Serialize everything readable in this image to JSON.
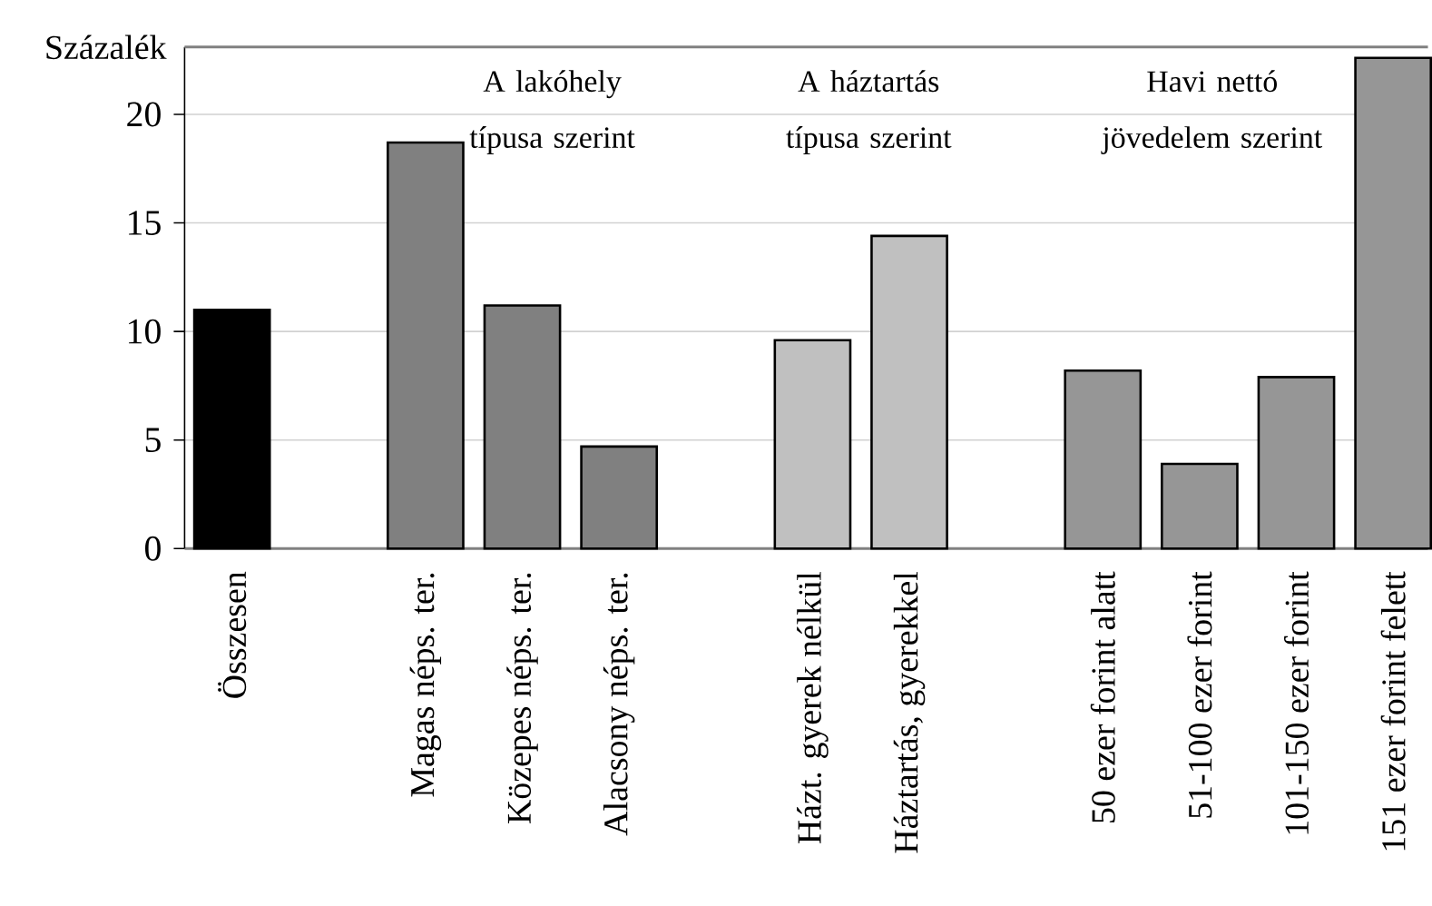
{
  "chart_data": {
    "type": "bar",
    "ylabel": "Százalék",
    "categories": [
      "Összesen",
      null,
      "Magas néps. ter.",
      "Közepes néps. ter.",
      "Alacsony  néps. ter.",
      null,
      "Házt. gyerek nélkül",
      "Háztartás, gyerekkel",
      null,
      "50 ezer forint alatt",
      "51-100 ezer forint",
      "101-150 ezer forint",
      "151 ezer forint felett"
    ],
    "values": [
      11.0,
      null,
      18.7,
      11.2,
      4.7,
      null,
      9.6,
      14.4,
      null,
      8.2,
      3.9,
      7.9,
      22.6
    ],
    "colors": [
      "#000000",
      null,
      "#808080",
      "#808080",
      "#808080",
      null,
      "#c0c0c0",
      "#c0c0c0",
      null,
      "#969696",
      "#969696",
      "#969696",
      "#969696"
    ],
    "ylim": [
      0,
      23.1
    ],
    "yticks": [
      0,
      5,
      10,
      15,
      20
    ],
    "grid": "y",
    "annotations": [
      "A lakóhely típusa szerint",
      "A háztartás típusa szerint",
      "Havi nettó jövedelem szerint"
    ]
  }
}
